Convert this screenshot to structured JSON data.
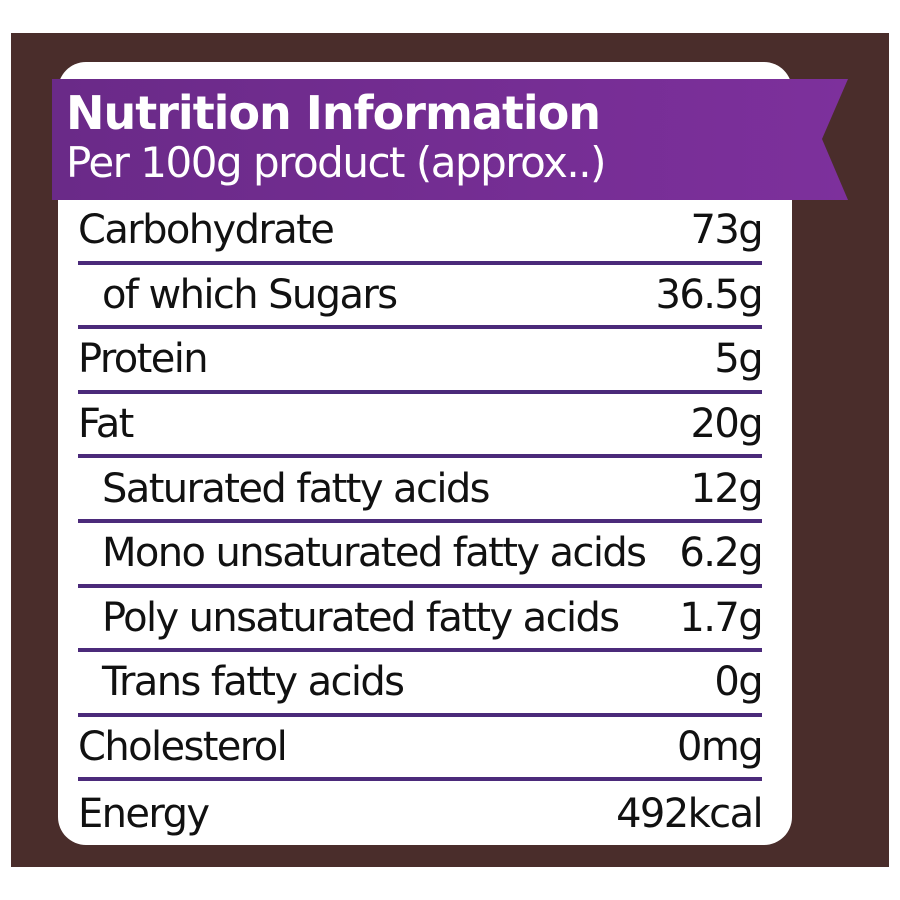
{
  "header": {
    "title": "Nutrition Information",
    "subtitle": "Per 100g product (approx..)"
  },
  "colors": {
    "background": "#4a2d2b",
    "banner_start": "#6b2a8c",
    "banner_end": "#7a2f9a",
    "rule": "#4b2a7a"
  },
  "rows": [
    {
      "label": "Carbohydrate",
      "value": "73g",
      "indent": false
    },
    {
      "label": "of which Sugars",
      "value": "36.5g",
      "indent": true
    },
    {
      "label": "Protein",
      "value": "5g",
      "indent": false
    },
    {
      "label": "Fat",
      "value": "20g",
      "indent": false
    },
    {
      "label": "Saturated fatty acids",
      "value": "12g",
      "indent": true
    },
    {
      "label": "Mono unsaturated fatty acids",
      "value": "6.2g",
      "indent": true
    },
    {
      "label": "Poly unsaturated fatty acids",
      "value": "1.7g",
      "indent": true
    },
    {
      "label": "Trans fatty acids",
      "value": "0g",
      "indent": true
    },
    {
      "label": "Cholesterol",
      "value": "0mg",
      "indent": false
    },
    {
      "label": "Energy",
      "value": "492kcal",
      "indent": false
    }
  ]
}
